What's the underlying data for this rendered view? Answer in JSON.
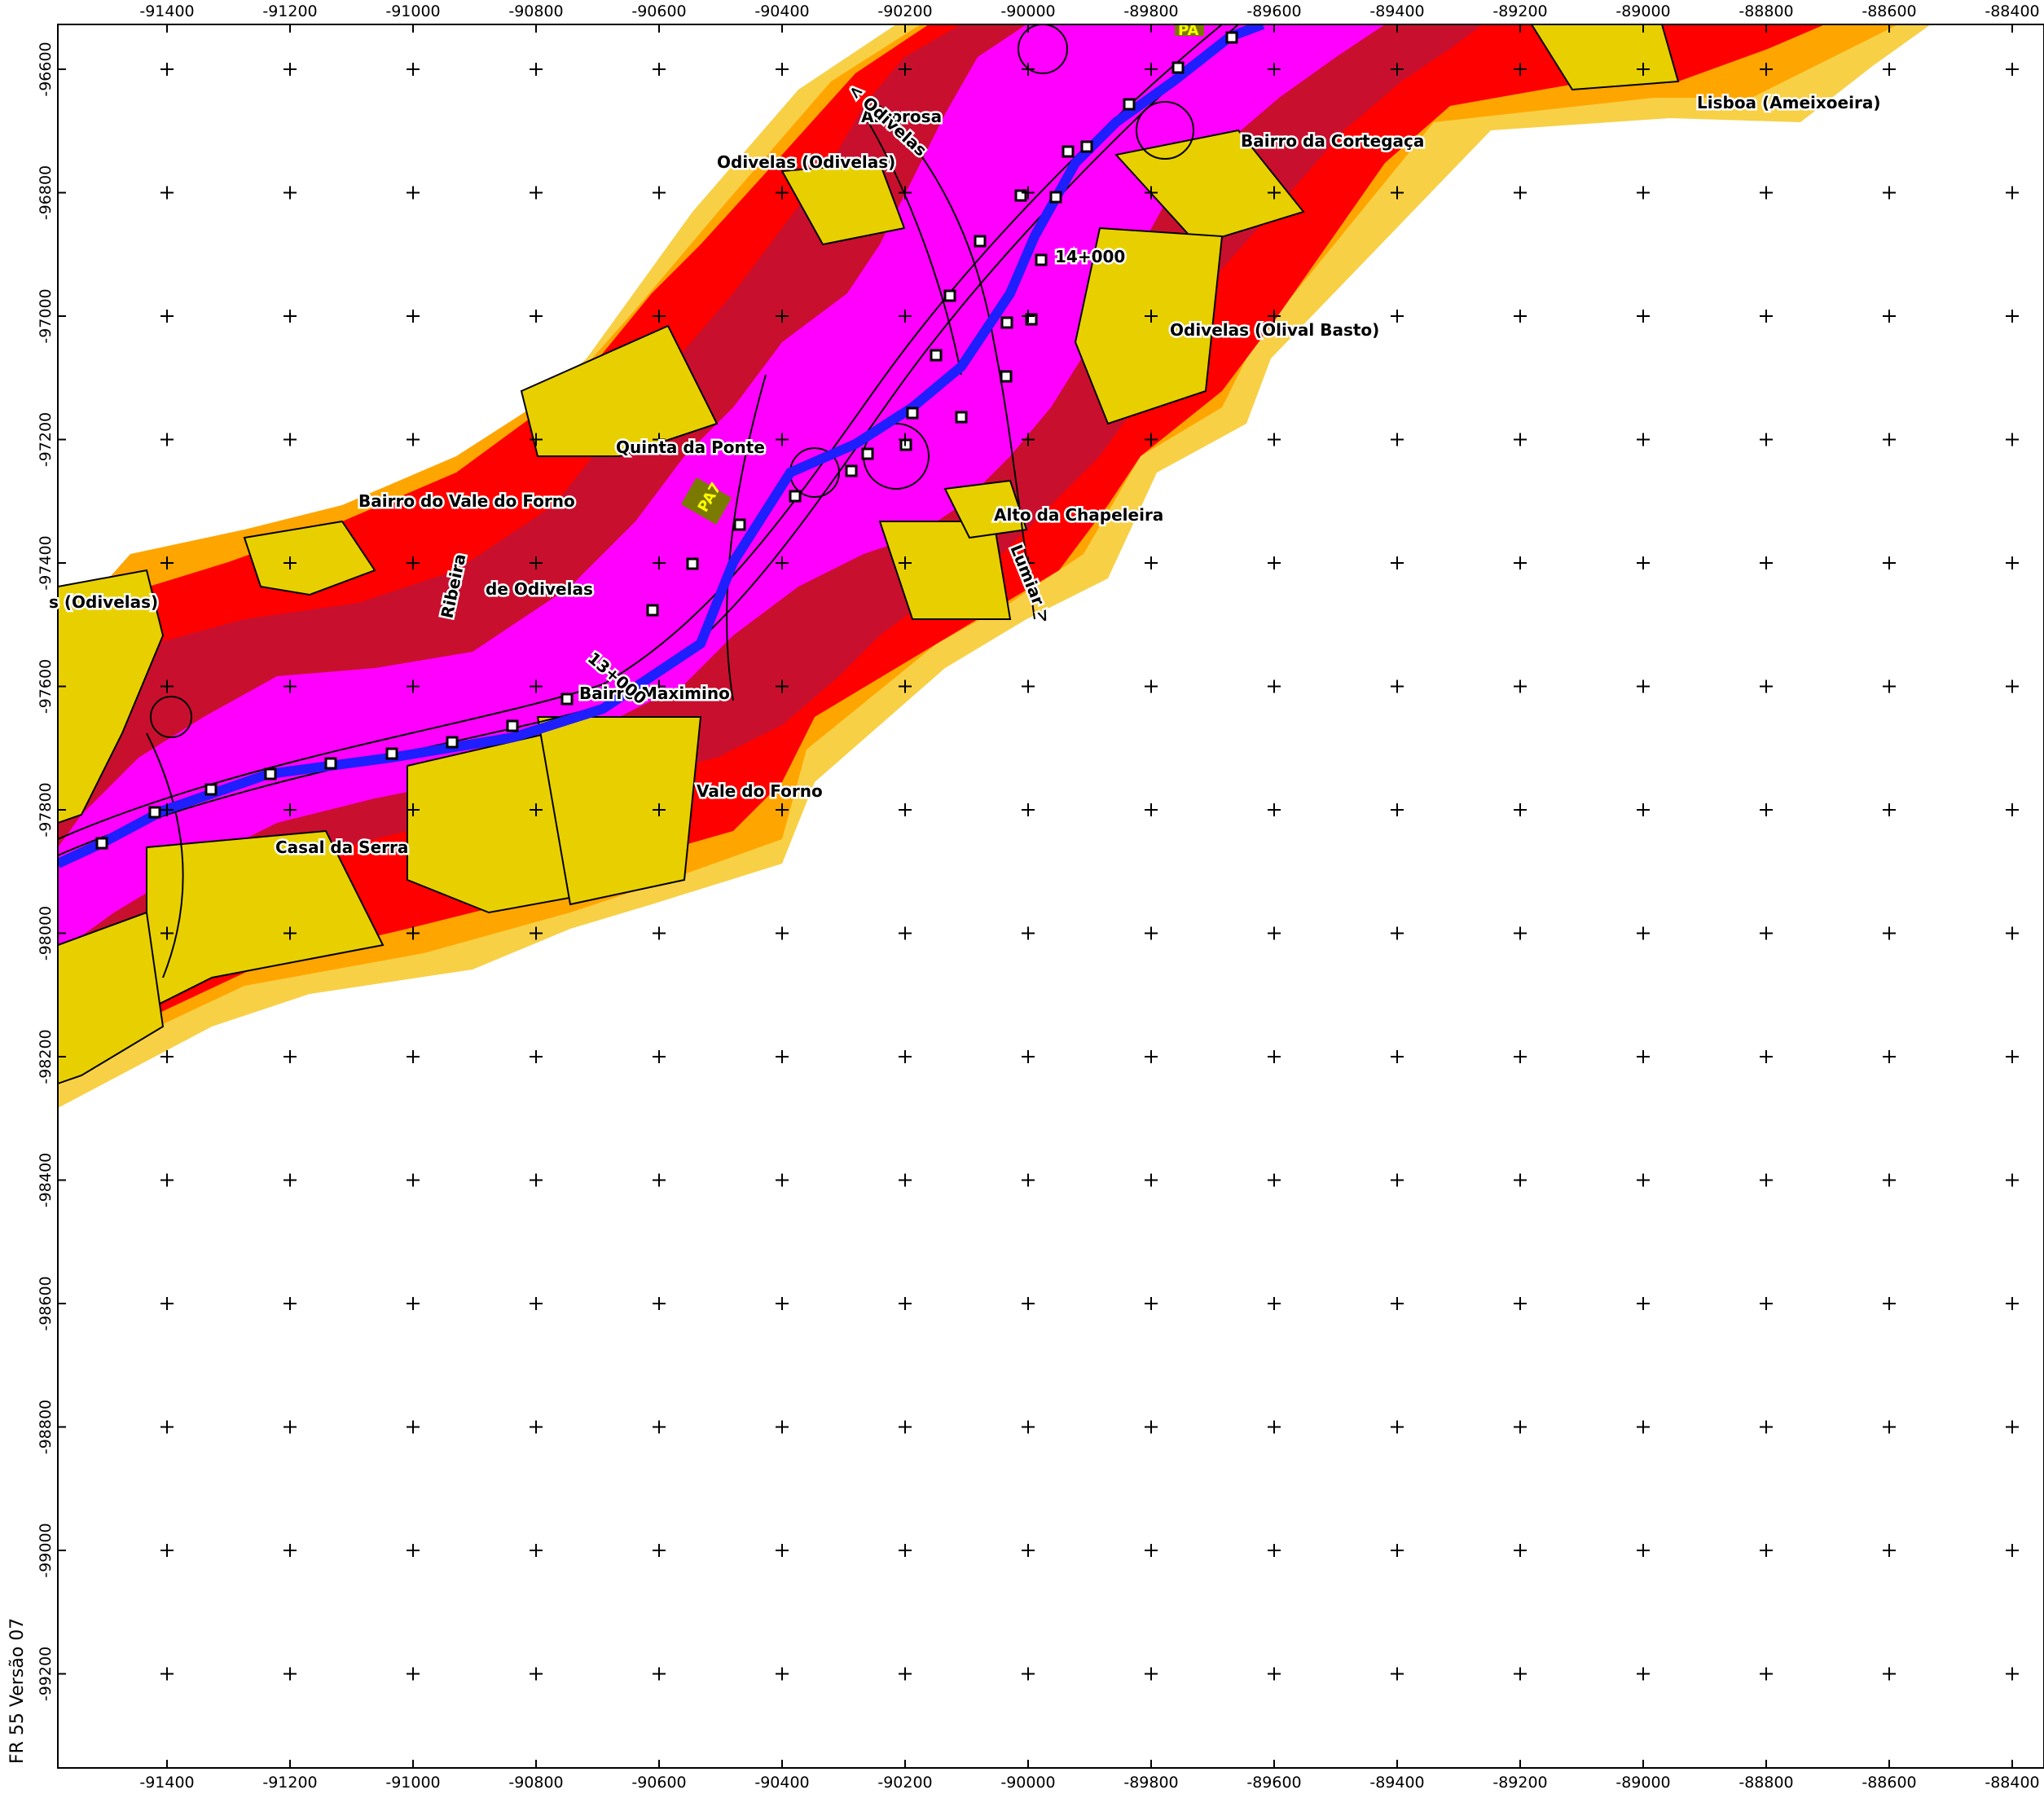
{
  "map": {
    "x_ticks": [
      "-91400",
      "-91200",
      "-91000",
      "-90800",
      "-90600",
      "-90400",
      "-90200",
      "-90000",
      "-89800",
      "-89600",
      "-89400",
      "-89200",
      "-89000",
      "-88800",
      "-88600",
      "-88400"
    ],
    "y_ticks": [
      "-96600",
      "-96800",
      "-97000",
      "-97200",
      "-97400",
      "-97600",
      "-97800",
      "-98000",
      "-98200",
      "-98400",
      "-98600",
      "-98800",
      "-99000",
      "-99200"
    ],
    "version_label": "FR 55 Versão 07",
    "colors": {
      "band_lightest": "#f7d046",
      "band_yellow": "#ffd700",
      "band_orange": "#ffa500",
      "band_red": "#ff0000",
      "band_darkred": "#c8102e",
      "band_magenta": "#ff00ff",
      "road_blue": "#1e1eff",
      "building_fill": "#e8d000",
      "outline": "#000000"
    },
    "places": {
      "amorosa": "Amorosa",
      "odivelas_odivelas": "Odivelas (Odivelas)",
      "odivelas_left": "s (Odivelas)",
      "bairro_cortegaca": "Bairro da Cortegaça",
      "lisboa_ameixoeira": "Lisboa (Ameixoeira)",
      "odivelas_olival_basto": "Odivelas (Olival Basto)",
      "quinta_da_ponte": "Quinta da Ponte",
      "bairro_vale_do_forno": "Bairro do Vale do Forno",
      "alto_da_chapeleira": "Alto da Chapeleira",
      "ribeira": "Ribeira",
      "de_odivelas": "de Odivelas",
      "bairro_maximino": "Bairro Maximino",
      "vale_do_forno": "Vale do Forno",
      "casal_da_serra": "Casal da Serra"
    },
    "roads": {
      "to_odivelas": "< Odivelas",
      "to_lumiar": "Lumiar >",
      "pa7": "PA7",
      "pa_top": "PA"
    },
    "chainage": {
      "km14": "14+000",
      "km13": "13+000"
    }
  }
}
